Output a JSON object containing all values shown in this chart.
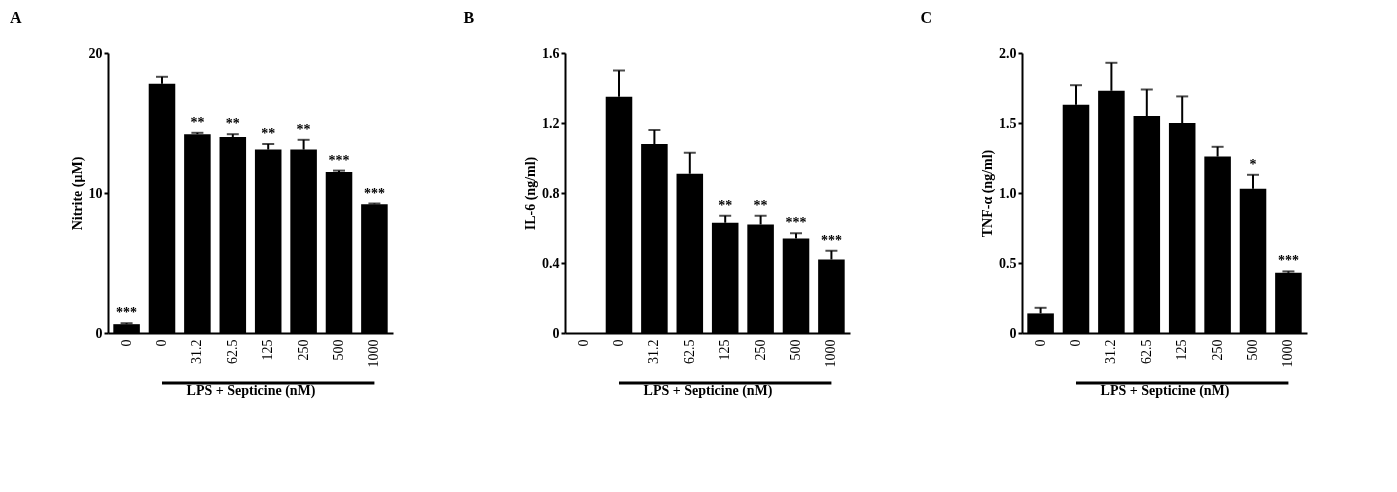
{
  "chart_data": [
    {
      "type": "bar",
      "title": "A",
      "ylabel": "Nitrite (μM)",
      "xlabel": "LPS + Septicine (nM)",
      "categories": [
        "0",
        "0",
        "31.2",
        "62.5",
        "125",
        "250",
        "500",
        "1000"
      ],
      "values": [
        0.63,
        17.8,
        14.2,
        14.0,
        13.1,
        13.1,
        11.5,
        9.2
      ],
      "errors": [
        [
          0.63,
          0.7
        ],
        [
          17.8,
          18.3
        ],
        [
          14.2,
          14.3
        ],
        [
          14.0,
          14.2
        ],
        [
          13.1,
          13.5
        ],
        [
          13.1,
          13.8
        ],
        [
          11.5,
          11.6
        ],
        [
          9.2,
          9.25
        ]
      ],
      "color": "#000000",
      "ylim": [
        0,
        20
      ],
      "yticks": [
        0,
        10,
        20
      ],
      "grid": false,
      "annotations": [
        {
          "text": "***",
          "x": "0",
          "y": 0.7
        },
        {
          "text": "**",
          "x": "31.2",
          "y": 14.3
        },
        {
          "text": "**",
          "x": "62.5",
          "y": 14.2
        },
        {
          "text": "**",
          "x": "125",
          "y": 13.5
        },
        {
          "text": "**",
          "x": "250",
          "y": 13.8
        },
        {
          "text": "***",
          "x": "500",
          "y": 11.6
        },
        {
          "text": "***",
          "x": "1000",
          "y": 9.25
        }
      ]
    },
    {
      "type": "bar",
      "title": "B",
      "ylabel": "IL-6 (ng/ml)",
      "xlabel": "LPS + Septicine (nM)",
      "categories": [
        "0",
        "0",
        "31.2",
        "62.5",
        "125",
        "250",
        "500",
        "1000"
      ],
      "values": [
        0,
        1.35,
        1.08,
        0.91,
        0.63,
        0.62,
        0.54,
        0.42
      ],
      "errors": [
        null,
        [
          1.35,
          1.5
        ],
        [
          1.08,
          1.16
        ],
        [
          0.91,
          1.03
        ],
        [
          0.63,
          0.67
        ],
        [
          0.62,
          0.67
        ],
        [
          0.54,
          0.57
        ],
        [
          0.42,
          0.47
        ]
      ],
      "color": "#000000",
      "ylim": [
        0,
        1.6
      ],
      "yticks": [
        0,
        0.4,
        0.8,
        1.2,
        1.6
      ],
      "grid": false,
      "annotations": [
        {
          "text": "**",
          "x": "125",
          "y": 0.67
        },
        {
          "text": "**",
          "x": "250",
          "y": 0.67
        },
        {
          "text": "***",
          "x": "500",
          "y": 0.57
        },
        {
          "text": "***",
          "x": "1000",
          "y": 0.47
        }
      ]
    },
    {
      "type": "bar",
      "title": "C",
      "ylabel": "TNF-α (ng/ml)",
      "xlabel": "LPS + Septicine (nM)",
      "categories": [
        "0",
        "0",
        "31.2",
        "62.5",
        "125",
        "250",
        "500",
        "1000"
      ],
      "values": [
        0.14,
        1.63,
        1.73,
        1.55,
        1.5,
        1.26,
        1.03,
        0.43
      ],
      "errors": [
        [
          0.14,
          0.18
        ],
        [
          1.63,
          1.77
        ],
        [
          1.73,
          1.93
        ],
        [
          1.55,
          1.74
        ],
        [
          1.5,
          1.69
        ],
        [
          1.26,
          1.33
        ],
        [
          1.03,
          1.13
        ],
        [
          0.43,
          0.44
        ]
      ],
      "color": "#000000",
      "ylim": [
        0,
        2.0
      ],
      "yticks": [
        0,
        0.5,
        {
          "value": 1.0,
          "label": "1.0"
        },
        1.5,
        {
          "value": 2.0,
          "label": "2.0"
        }
      ],
      "grid": false,
      "annotations": [
        {
          "text": "*",
          "x": "500",
          "y": 1.13
        },
        {
          "text": "***",
          "x": "1000",
          "y": 0.44
        }
      ]
    }
  ]
}
